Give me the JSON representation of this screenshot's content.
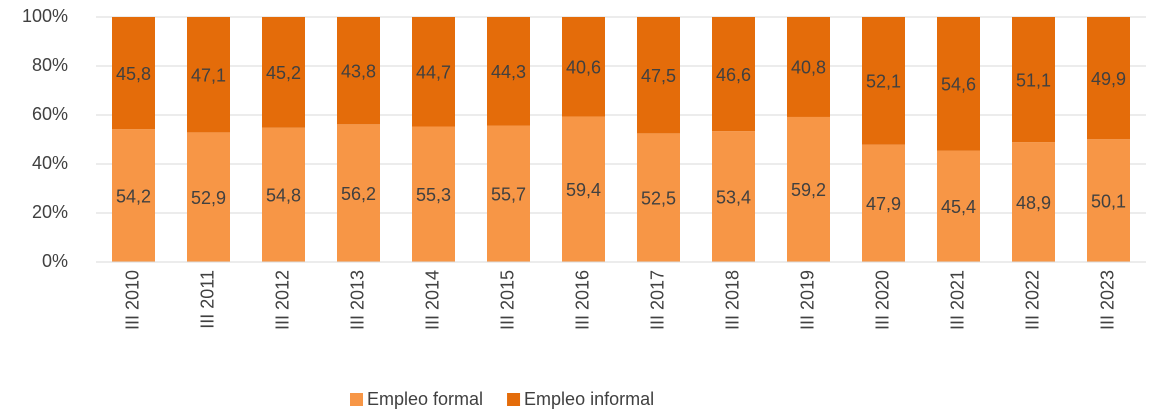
{
  "chart_data": {
    "type": "stacked_bar",
    "categories": [
      "III 2010",
      "III 2011",
      "III 2012",
      "III 2013",
      "III 2014",
      "III 2015",
      "III 2016",
      "III 2017",
      "III 2018",
      "III 2019",
      "III 2020",
      "III 2021",
      "III 2022",
      "III 2023"
    ],
    "series": [
      {
        "name": "Empleo formal",
        "color": "#f79646",
        "values": [
          54.2,
          52.9,
          54.8,
          56.2,
          55.3,
          55.7,
          59.4,
          52.5,
          53.4,
          59.2,
          47.9,
          45.4,
          48.9,
          50.1
        ],
        "value_labels": [
          "54,2",
          "52,9",
          "54,8",
          "56,2",
          "55,3",
          "55,7",
          "59,4",
          "52,5",
          "53,4",
          "59,2",
          "47,9",
          "45,4",
          "48,9",
          "50,1"
        ]
      },
      {
        "name": "Empleo informal",
        "color": "#e46c0a",
        "values": [
          45.8,
          47.1,
          45.2,
          43.8,
          44.7,
          44.3,
          40.6,
          47.5,
          46.6,
          40.8,
          52.1,
          54.6,
          51.1,
          49.9
        ],
        "value_labels": [
          "45,8",
          "47,1",
          "45,2",
          "43,8",
          "44,7",
          "44,3",
          "40,6",
          "47,5",
          "46,6",
          "40,8",
          "52,1",
          "54,6",
          "51,1",
          "49,9"
        ]
      }
    ],
    "ylim": [
      0,
      100
    ],
    "yticks": [
      {
        "value": 0,
        "label": "0%"
      },
      {
        "value": 20,
        "label": "20%"
      },
      {
        "value": 40,
        "label": "40%"
      },
      {
        "value": 60,
        "label": "60%"
      },
      {
        "value": 80,
        "label": "80%"
      },
      {
        "value": 100,
        "label": "100%"
      }
    ],
    "grid": true,
    "legend": "bottom"
  }
}
